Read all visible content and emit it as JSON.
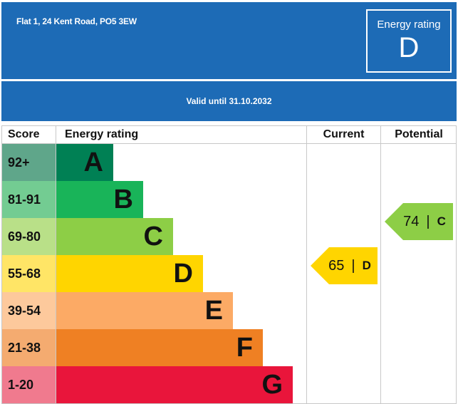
{
  "header": {
    "address": "Flat 1, 24 Kent Road, PO5 3EW",
    "rating_label": "Energy rating",
    "rating_value": "D"
  },
  "valid_until": "Valid until 31.10.2032",
  "table": {
    "headers": {
      "score": "Score",
      "energy_rating": "Energy rating",
      "current": "Current",
      "potential": "Potential"
    },
    "bands": [
      {
        "score": "92+",
        "letter": "A",
        "color": "#008054",
        "score_bg": "#5fa68a"
      },
      {
        "score": "81-91",
        "letter": "B",
        "color": "#19b459",
        "score_bg": "#73cc92"
      },
      {
        "score": "69-80",
        "letter": "C",
        "color": "#8dce46",
        "score_bg": "#b9e088"
      },
      {
        "score": "55-68",
        "letter": "D",
        "color": "#ffd500",
        "score_bg": "#ffe566"
      },
      {
        "score": "39-54",
        "letter": "E",
        "color": "#fcaa65",
        "score_bg": "#fdc99c"
      },
      {
        "score": "21-38",
        "letter": "F",
        "color": "#ef8023",
        "score_bg": "#f4ab70"
      },
      {
        "score": "1-20",
        "letter": "G",
        "color": "#e9153b",
        "score_bg": "#f07a8e"
      }
    ],
    "current": {
      "value": "65",
      "separator": "|",
      "letter": "D",
      "color": "#ffd500"
    },
    "potential": {
      "value": "74",
      "separator": "|",
      "letter": "C",
      "color": "#8dce46"
    }
  }
}
